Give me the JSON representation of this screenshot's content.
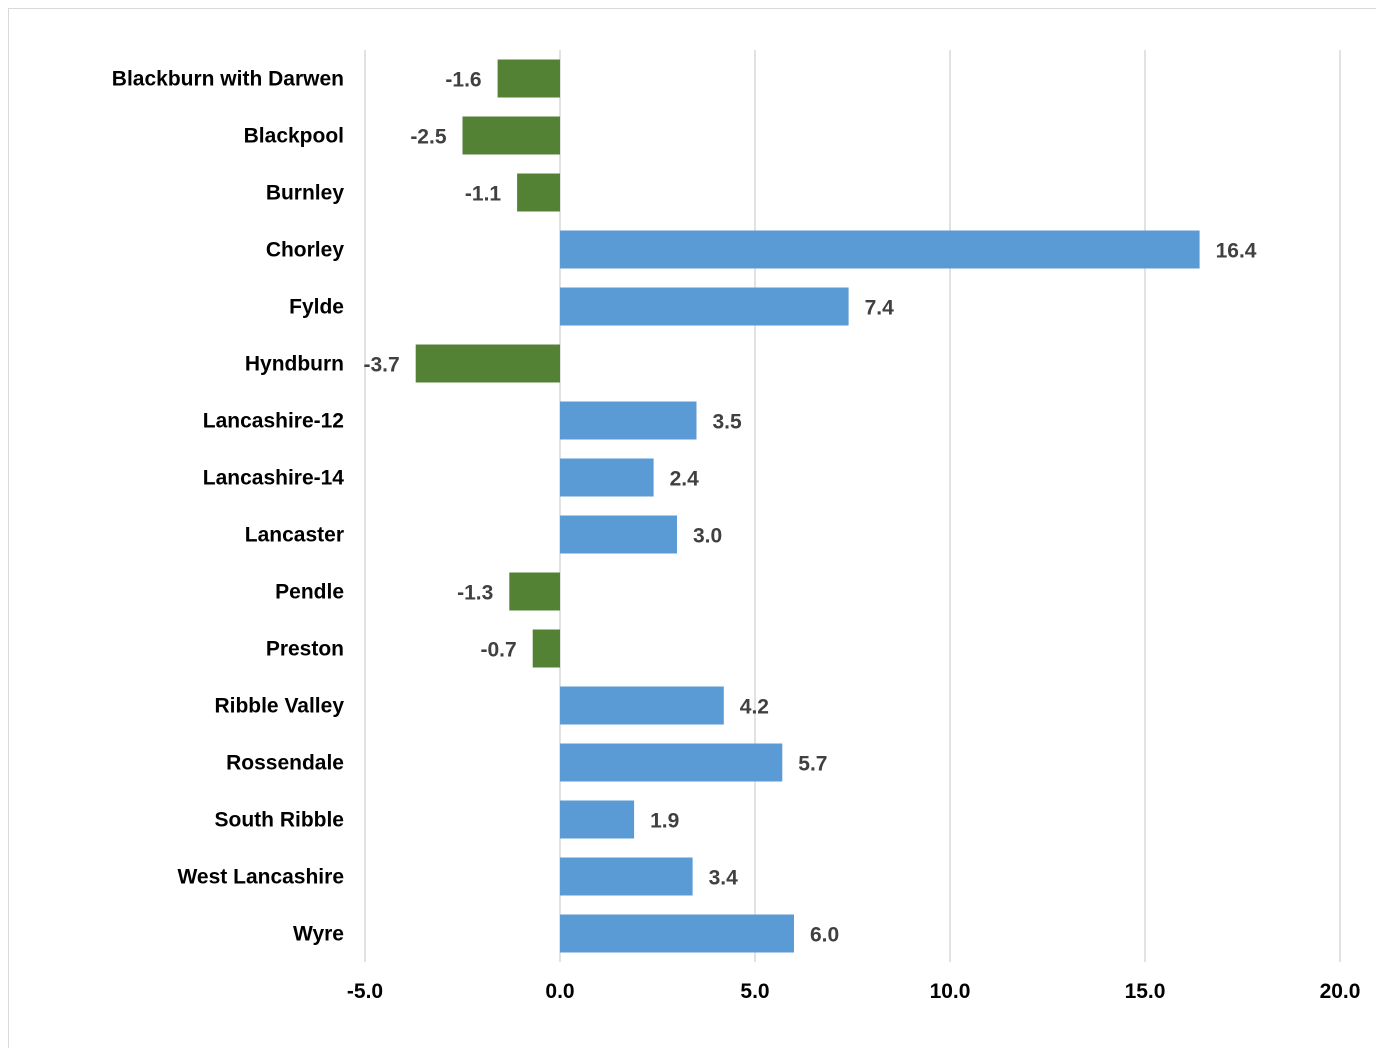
{
  "chart_data": {
    "type": "bar",
    "orientation": "horizontal",
    "title": "",
    "xlabel": "",
    "ylabel": "",
    "categories": [
      "Blackburn with Darwen",
      "Blackpool",
      "Burnley",
      "Chorley",
      "Fylde",
      "Hyndburn",
      "Lancashire-12",
      "Lancashire-14",
      "Lancaster",
      "Pendle",
      "Preston",
      "Ribble Valley",
      "Rossendale",
      "South Ribble",
      "West Lancashire",
      "Wyre"
    ],
    "values": [
      -1.6,
      -2.5,
      -1.1,
      16.4,
      7.4,
      -3.7,
      3.5,
      2.4,
      3.0,
      -1.3,
      -0.7,
      4.2,
      5.7,
      1.9,
      3.4,
      6.0
    ],
    "data_labels": [
      "-1.6",
      "-2.5",
      "-1.1",
      "16.4",
      "7.4",
      "-3.7",
      "3.5",
      "2.4",
      "3.0",
      "-1.3",
      "-0.7",
      "4.2",
      "5.7",
      "1.9",
      "3.4",
      "6.0"
    ],
    "xlim": [
      -5,
      20
    ],
    "x_ticks": [
      -5,
      0,
      5,
      10,
      15,
      20
    ],
    "x_tick_labels": [
      "-5.0",
      "0.0",
      "5.0",
      "10.0",
      "15.0",
      "20.0"
    ],
    "grid": "vertical",
    "legend": "none",
    "colors": {
      "positive": "#5b9bd5",
      "negative": "#548235",
      "gridline": "#d9d9d9",
      "data_label": "#404040",
      "axis_label": "#000000"
    }
  }
}
